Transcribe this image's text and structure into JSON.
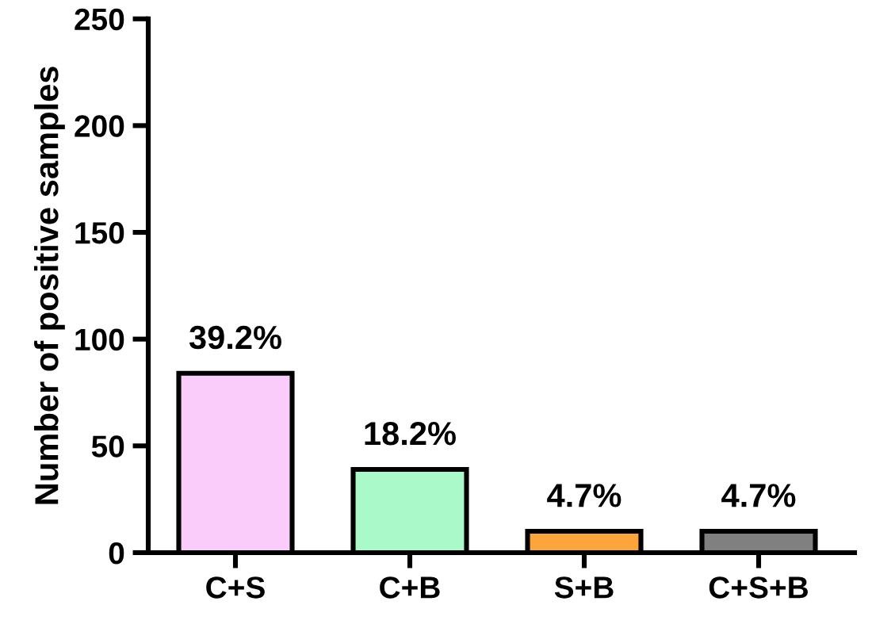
{
  "chart_data": {
    "type": "bar",
    "ylabel": "Number of positive samples",
    "categories": [
      "C+S",
      "C+B",
      "S+B",
      "C+S+B"
    ],
    "values": [
      84,
      39,
      10,
      10
    ],
    "colors": [
      "#f9ccf9",
      "#aaf9c8",
      "#fca53a",
      "#808080"
    ],
    "annotations": [
      {
        "text": "39.2%",
        "x": "C+S",
        "y": 84
      },
      {
        "text": "18.2%",
        "x": "C+B",
        "y": 39
      },
      {
        "text": "4.7%",
        "x": "S+B",
        "y": 10
      },
      {
        "text": "4.7%",
        "x": "C+S+B",
        "y": 10
      }
    ],
    "ylim": [
      0,
      250
    ],
    "yticks": [
      0,
      50,
      100,
      150,
      200,
      250
    ],
    "grid": false
  }
}
